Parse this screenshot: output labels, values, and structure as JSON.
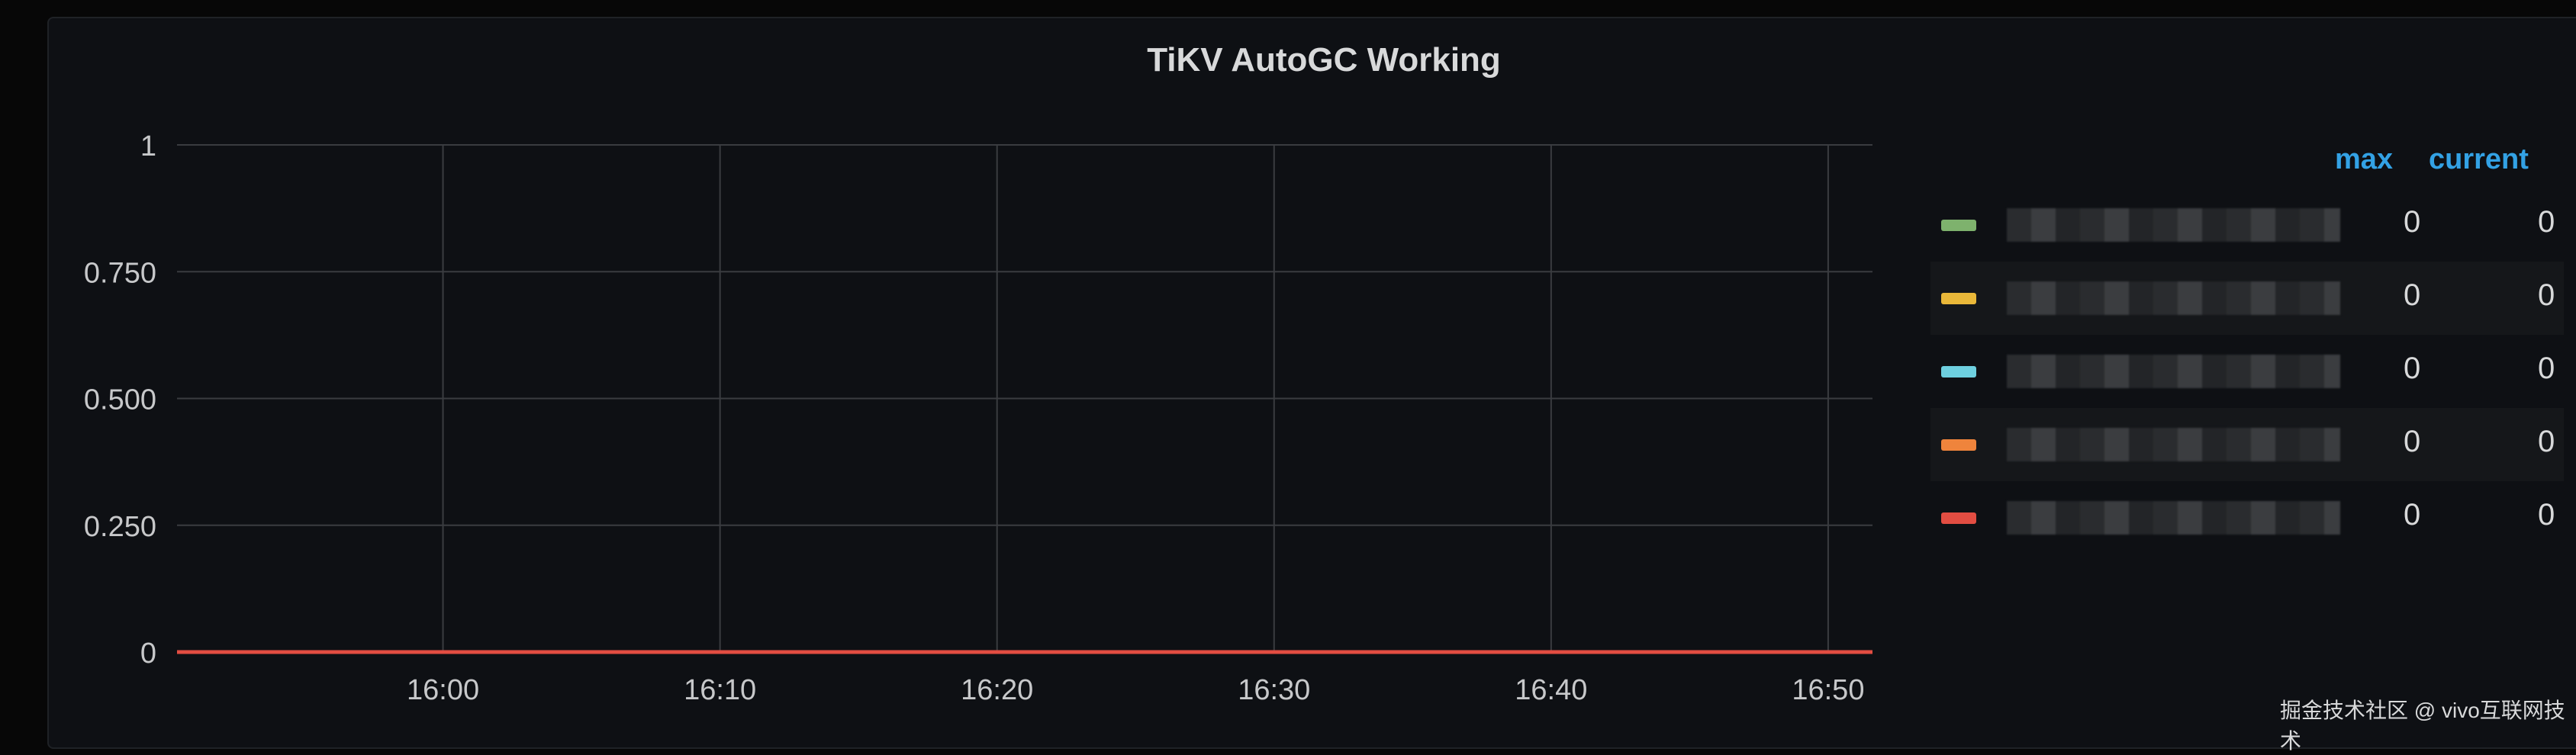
{
  "chart_data": {
    "type": "line",
    "title": "TiKV AutoGC Working",
    "x_ticks": [
      "16:00",
      "16:10",
      "16:20",
      "16:30",
      "16:40",
      "16:50"
    ],
    "xlim": [
      "15:51",
      "16:51"
    ],
    "y_ticks": [
      "0",
      "0.250",
      "0.500",
      "0.750",
      "1"
    ],
    "ylim": [
      0,
      1
    ],
    "grid": true,
    "legend_placement": "right",
    "legend_columns": [
      "max",
      "current"
    ],
    "series": [
      {
        "color": "#7eb26d",
        "max": "0",
        "current": "0",
        "values": [
          0,
          0
        ]
      },
      {
        "color": "#eab839",
        "max": "0",
        "current": "0",
        "values": [
          0,
          0
        ]
      },
      {
        "color": "#6ed0e0",
        "max": "0",
        "current": "0",
        "values": [
          0,
          0
        ]
      },
      {
        "color": "#ef843c",
        "max": "0",
        "current": "0",
        "values": [
          0,
          0
        ]
      },
      {
        "color": "#e24d42",
        "max": "0",
        "current": "0",
        "values": [
          0,
          0
        ]
      }
    ]
  },
  "watermark": "掘金技术社区 @ vivo互联网技术"
}
